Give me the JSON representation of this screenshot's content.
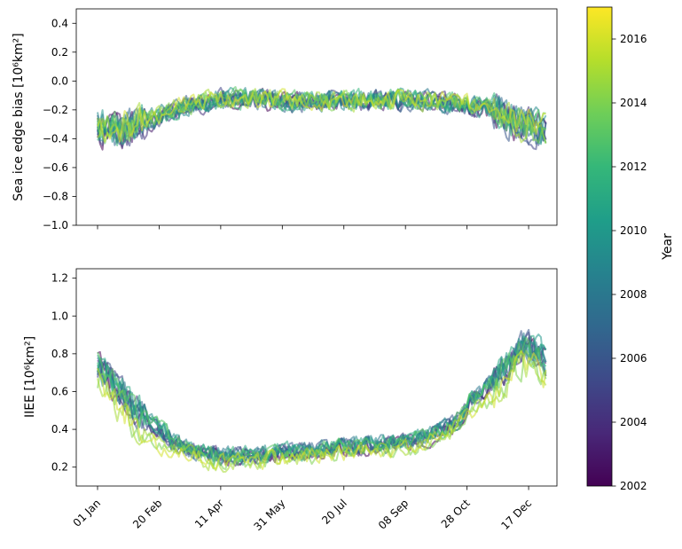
{
  "chart_data": [
    {
      "type": "line",
      "panel": "top",
      "ylabel": "Sea ice edge bias [10⁶km²]",
      "ylim": [
        -1.0,
        0.5
      ],
      "yticks": [
        -1.0,
        -0.8,
        -0.6,
        -0.4,
        -0.2,
        0.0,
        0.2,
        0.4
      ],
      "ytick_labels": [
        "−1.0",
        "−0.8",
        "−0.6",
        "−0.4",
        "−0.2",
        "0.0",
        "0.2",
        "0.4"
      ],
      "x_tick_labels_shown": false,
      "series_years": [
        2002,
        2003,
        2004,
        2005,
        2006,
        2007,
        2008,
        2009,
        2010,
        2011,
        2012,
        2013,
        2014,
        2015,
        2016
      ],
      "profile_day": [
        0,
        10,
        20,
        30,
        50,
        70,
        100,
        130,
        160,
        200,
        240,
        280,
        300,
        320,
        335,
        345,
        355,
        364
      ],
      "profile_value": [
        -0.33,
        -0.34,
        -0.36,
        -0.32,
        -0.26,
        -0.18,
        -0.13,
        -0.13,
        -0.15,
        -0.14,
        -0.14,
        -0.15,
        -0.17,
        -0.21,
        -0.27,
        -0.31,
        -0.34,
        -0.35
      ],
      "noise_amplitude": 0.06
    },
    {
      "type": "line",
      "panel": "bottom",
      "ylabel": "IIEE [10⁶km²]",
      "ylim": [
        0.1,
        1.25
      ],
      "yticks": [
        0.2,
        0.4,
        0.6,
        0.8,
        1.0,
        1.2
      ],
      "ytick_labels": [
        "0.2",
        "0.4",
        "0.6",
        "0.8",
        "1.0",
        "1.2"
      ],
      "xticks": [
        0,
        50,
        100,
        150,
        200,
        250,
        300,
        350
      ],
      "xtick_labels": [
        "01 Jan",
        "20 Feb",
        "11 Apr",
        "31 May",
        "20 Jul",
        "08 Sep",
        "28 Oct",
        "17 Dec"
      ],
      "series_years": [
        2002,
        2003,
        2004,
        2005,
        2006,
        2007,
        2008,
        2009,
        2010,
        2011,
        2012,
        2013,
        2014,
        2015,
        2016
      ],
      "profile_day": [
        0,
        10,
        20,
        30,
        45,
        60,
        80,
        100,
        130,
        160,
        200,
        240,
        270,
        290,
        300,
        315,
        330,
        345,
        355,
        364
      ],
      "profile_value": [
        0.7,
        0.62,
        0.55,
        0.47,
        0.38,
        0.32,
        0.27,
        0.24,
        0.25,
        0.27,
        0.29,
        0.31,
        0.35,
        0.42,
        0.5,
        0.58,
        0.68,
        0.8,
        0.78,
        0.72
      ],
      "noise_amplitude": 0.04
    }
  ],
  "colorbar": {
    "label": "Year",
    "range": [
      2002,
      2017
    ],
    "ticks": [
      2002,
      2004,
      2006,
      2008,
      2010,
      2012,
      2014,
      2016
    ],
    "tick_labels": [
      "2002",
      "2004",
      "2006",
      "2008",
      "2010",
      "2012",
      "2014",
      "2016"
    ],
    "colormap": "viridis",
    "stops": [
      "#440154",
      "#482878",
      "#3e4a89",
      "#31688e",
      "#26828e",
      "#1f9e89",
      "#35b779",
      "#6ece58",
      "#b5de2b",
      "#fde725"
    ]
  },
  "line_alpha": 0.55
}
